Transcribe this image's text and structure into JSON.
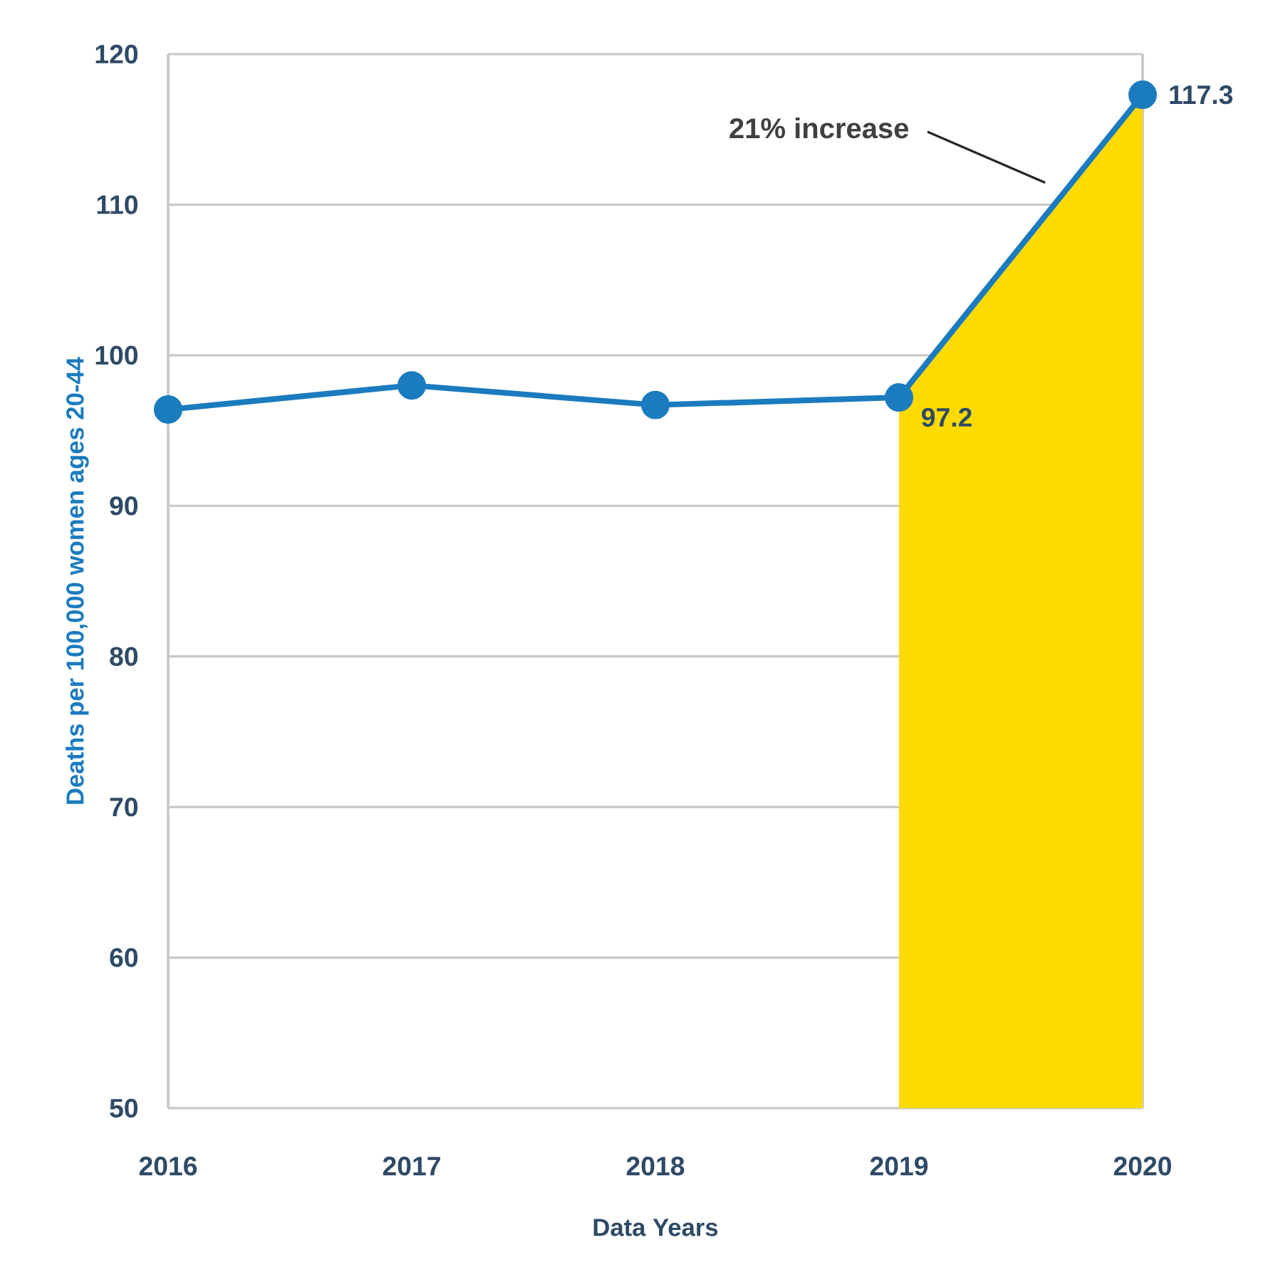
{
  "chart_data": {
    "type": "line",
    "xlabel": "Data Years",
    "ylabel": "Deaths per 100,000 women ages 20-44",
    "categories": [
      "2016",
      "2017",
      "2018",
      "2019",
      "2020"
    ],
    "series": [
      {
        "type": "area",
        "color": "#fedb00",
        "values": [
          null,
          null,
          null,
          97.2,
          117.3
        ]
      },
      {
        "color": "#1b7bbf",
        "marker": "circle",
        "values": [
          96.4,
          98.0,
          96.7,
          97.2,
          117.3
        ],
        "value_labels": [
          null,
          null,
          null,
          "97.2",
          "117.3"
        ]
      }
    ],
    "ylim": [
      50,
      120
    ],
    "yticks": [
      50,
      60,
      70,
      80,
      90,
      100,
      110,
      120
    ],
    "grid": "y",
    "line_style": "solid",
    "annotations": [
      "21% increase"
    ]
  }
}
